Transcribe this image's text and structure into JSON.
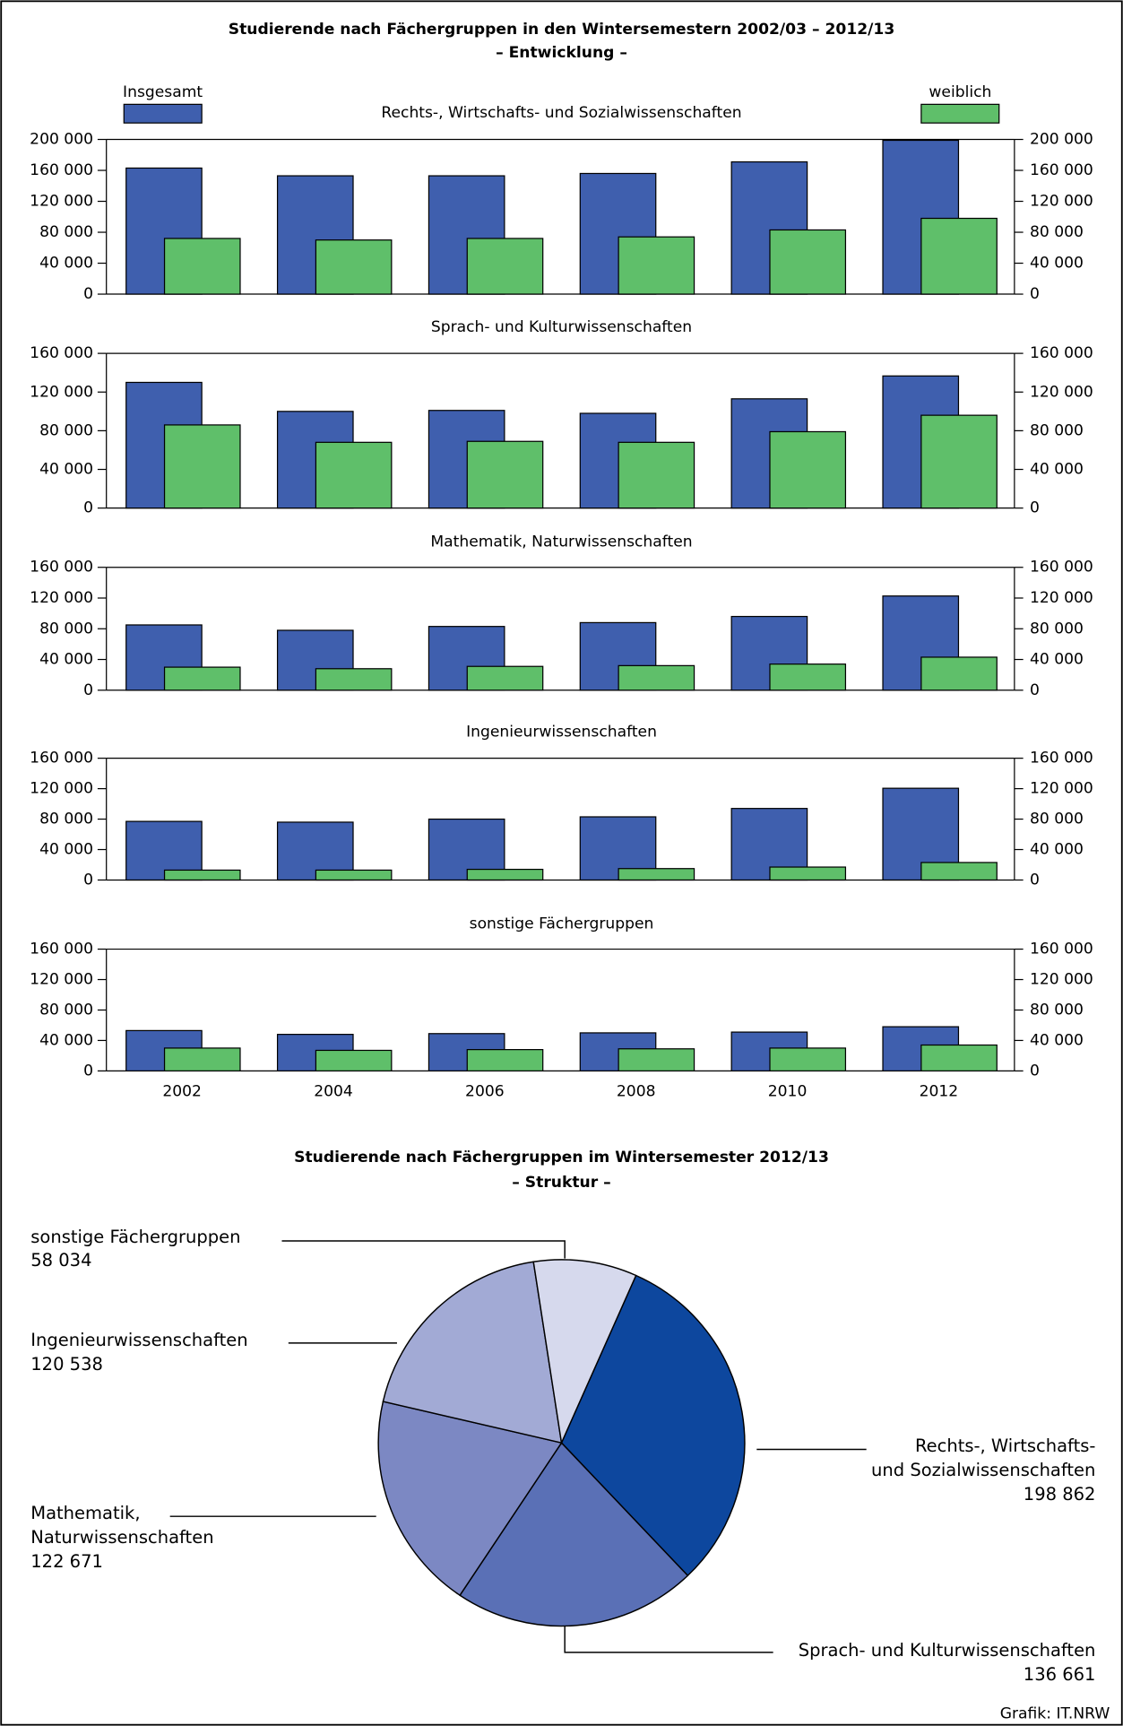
{
  "chart_data": [
    {
      "type": "bar",
      "title": "Studierende nach Fächergruppen in den Wintersemestern 2002/03 – 2012/13",
      "subtitle": "– Entwicklung –",
      "categories": [
        "2002",
        "2004",
        "2006",
        "2008",
        "2010",
        "2012"
      ],
      "series": [
        {
          "name": "Insgesamt",
          "color": "#3f5fae"
        },
        {
          "name": "weiblich",
          "color": "#5fbf6a"
        }
      ],
      "panels": [
        {
          "title": "Rechts-, Wirtschafts- und Sozialwissenschaften",
          "ylim": [
            0,
            200000
          ],
          "yticks": [
            0,
            {
              "value": 40000,
              "label": "40 000"
            },
            {
              "value": 80000,
              "label": "80 000"
            },
            {
              "value": 120000,
              "label": "120 000"
            },
            {
              "value": 160000,
              "label": "160 000"
            },
            {
              "value": 200000,
              "label": "200 000"
            }
          ],
          "series": [
            {
              "values": [
                163000,
                153000,
                153000,
                156000,
                171000,
                198862
              ]
            },
            {
              "values": [
                72000,
                70000,
                72000,
                74000,
                83000,
                98000
              ]
            }
          ]
        },
        {
          "title": "Sprach- und Kulturwissenschaften",
          "ylim": [
            0,
            160000
          ],
          "yticks": [
            0,
            {
              "value": 40000,
              "label": "40 000"
            },
            {
              "value": 80000,
              "label": "80 000"
            },
            {
              "value": 120000,
              "label": "120 000"
            },
            {
              "value": 160000,
              "label": "160 000"
            }
          ],
          "series": [
            {
              "values": [
                130000,
                100000,
                101000,
                98000,
                113000,
                136661
              ]
            },
            {
              "values": [
                86000,
                68000,
                69000,
                68000,
                79000,
                96000
              ]
            }
          ]
        },
        {
          "title": "Mathematik, Naturwissenschaften",
          "ylim": [
            0,
            160000
          ],
          "yticks": [
            0,
            {
              "value": 40000,
              "label": "40 000"
            },
            {
              "value": 80000,
              "label": "80 000"
            },
            {
              "value": 120000,
              "label": "120 000"
            },
            {
              "value": 160000,
              "label": "160 000"
            }
          ],
          "series": [
            {
              "values": [
                85000,
                78000,
                83000,
                88000,
                96000,
                122671
              ]
            },
            {
              "values": [
                30000,
                28000,
                31000,
                32000,
                34000,
                43000
              ]
            }
          ]
        },
        {
          "title": "Ingenieurwissenschaften",
          "ylim": [
            0,
            160000
          ],
          "yticks": [
            0,
            {
              "value": 40000,
              "label": "40 000"
            },
            {
              "value": 80000,
              "label": "80 000"
            },
            {
              "value": 120000,
              "label": "120 000"
            },
            {
              "value": 160000,
              "label": "160 000"
            }
          ],
          "series": [
            {
              "values": [
                77000,
                76000,
                80000,
                83000,
                94000,
                120538
              ]
            },
            {
              "values": [
                13000,
                13000,
                14000,
                15000,
                17000,
                23000
              ]
            }
          ]
        },
        {
          "title": "sonstige Fächergruppen",
          "ylim": [
            0,
            160000
          ],
          "yticks": [
            0,
            {
              "value": 40000,
              "label": "40 000"
            },
            {
              "value": 80000,
              "label": "80 000"
            },
            {
              "value": 120000,
              "label": "120 000"
            },
            {
              "value": 160000,
              "label": "160 000"
            }
          ],
          "series": [
            {
              "values": [
                53000,
                48000,
                49000,
                50000,
                51000,
                58034
              ]
            },
            {
              "values": [
                30000,
                27000,
                28000,
                29000,
                30000,
                34000
              ]
            }
          ]
        }
      ]
    },
    {
      "type": "pie",
      "title": "Studierende nach Fächergruppen im Wintersemester 2012/13",
      "subtitle": "– Struktur –",
      "categories": [
        "Rechts-, Wirtschafts-\nund Sozialwissenschaften",
        "Sprach- und Kulturwissenschaften",
        "Mathematik,\nNaturwissenschaften",
        "Ingenieurwissenschaften",
        "sonstige Fächergruppen"
      ],
      "values": [
        198862,
        136661,
        122671,
        120538,
        58034
      ],
      "value_labels": [
        "198 862",
        "136 661",
        "122 671",
        "120 538",
        "58 034"
      ],
      "colors": [
        "#0d479e",
        "#5a70b6",
        "#7c88c3",
        "#a2aad5",
        "#d6d9ed"
      ]
    }
  ],
  "source": "Grafik: IT.NRW"
}
